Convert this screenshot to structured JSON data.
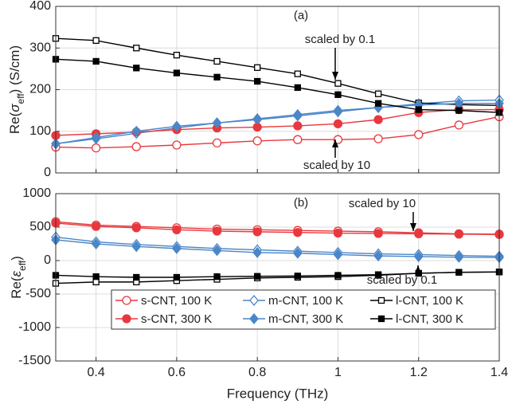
{
  "chart_data": [
    {
      "type": "line",
      "ylabel": [
        "Re(",
        "σ",
        "eff",
        ") (S/cm)"
      ],
      "x": [
        0.3,
        0.4,
        0.5,
        0.6,
        0.7,
        0.8,
        0.9,
        1.0,
        1.1,
        1.2,
        1.3,
        1.4
      ],
      "xlim": [
        0.3,
        1.4
      ],
      "xticks": [
        0.4,
        0.6,
        0.8,
        1,
        1.2,
        1.4
      ],
      "show_xticklabels": false,
      "ylim": [
        0,
        400
      ],
      "yticks": [
        0,
        100,
        200,
        300,
        400
      ],
      "grid": true,
      "annotations": [
        "(a)",
        "scaled by 0.1",
        "scaled by 10"
      ],
      "series": [
        {
          "color": "#e8383d",
          "marker": "circle",
          "filled": false,
          "values": [
            62,
            60,
            63,
            67,
            72,
            77,
            80,
            80,
            82,
            92,
            115,
            135
          ]
        },
        {
          "color": "#4a86c8",
          "marker": "diamond",
          "filled": false,
          "values": [
            70,
            82,
            95,
            108,
            120,
            128,
            137,
            147,
            157,
            166,
            173,
            175
          ]
        },
        {
          "color": "#000000",
          "marker": "square",
          "filled": false,
          "values": [
            323,
            318,
            300,
            283,
            268,
            253,
            238,
            215,
            190,
            168,
            164,
            162
          ]
        },
        {
          "color": "#e8383d",
          "marker": "circle",
          "filled": true,
          "values": [
            90,
            94,
            98,
            104,
            108,
            110,
            113,
            118,
            128,
            145,
            152,
            152
          ]
        },
        {
          "color": "#4a86c8",
          "marker": "diamond",
          "filled": true,
          "values": [
            70,
            85,
            100,
            112,
            120,
            130,
            140,
            150,
            157,
            163,
            167,
            167
          ]
        },
        {
          "color": "#000000",
          "marker": "square",
          "filled": true,
          "values": [
            273,
            268,
            252,
            240,
            230,
            220,
            205,
            188,
            167,
            152,
            150,
            145
          ]
        }
      ]
    },
    {
      "type": "line",
      "ylabel": [
        "Re(",
        "ε",
        "eff",
        ")"
      ],
      "xlabel": "Frequency (THz)",
      "x": [
        0.3,
        0.4,
        0.5,
        0.6,
        0.7,
        0.8,
        0.9,
        1.0,
        1.1,
        1.2,
        1.3,
        1.4
      ],
      "xlim": [
        0.3,
        1.4
      ],
      "xticks": [
        0.4,
        0.6,
        0.8,
        1,
        1.2,
        1.4
      ],
      "show_xticklabels": true,
      "ylim": [
        -1500,
        1000
      ],
      "yticks": [
        -1500,
        -1000,
        -500,
        0,
        500,
        1000
      ],
      "grid": true,
      "legend": "lower right",
      "annotations": [
        "(b)",
        "scaled by 10",
        "scaled by 0.1"
      ],
      "series": [
        {
          "name": "s-CNT, 100 K",
          "color": "#e8383d",
          "marker": "circle",
          "filled": false,
          "values": [
            580,
            530,
            510,
            490,
            470,
            460,
            450,
            440,
            430,
            415,
            400,
            395
          ]
        },
        {
          "name": "m-CNT, 100 K",
          "color": "#4a86c8",
          "marker": "diamond",
          "filled": false,
          "values": [
            350,
            280,
            240,
            210,
            180,
            160,
            140,
            120,
            100,
            90,
            75,
            65
          ]
        },
        {
          "name": "l-CNT, 100 K",
          "color": "#000000",
          "marker": "square",
          "filled": false,
          "values": [
            -340,
            -320,
            -320,
            -300,
            -280,
            -260,
            -250,
            -240,
            -220,
            -190,
            -175,
            -170
          ]
        },
        {
          "name": "s-CNT, 300 K",
          "color": "#e8383d",
          "marker": "circle",
          "filled": true,
          "values": [
            560,
            510,
            490,
            460,
            440,
            430,
            420,
            410,
            405,
            400,
            395,
            390
          ]
        },
        {
          "name": "m-CNT, 300 K",
          "color": "#4a86c8",
          "marker": "diamond",
          "filled": true,
          "values": [
            310,
            250,
            210,
            180,
            150,
            120,
            110,
            90,
            70,
            60,
            50,
            45
          ]
        },
        {
          "name": "l-CNT, 300 K",
          "color": "#000000",
          "marker": "square",
          "filled": true,
          "values": [
            -220,
            -240,
            -250,
            -250,
            -240,
            -235,
            -230,
            -220,
            -210,
            -190,
            -175,
            -170
          ]
        }
      ]
    }
  ]
}
